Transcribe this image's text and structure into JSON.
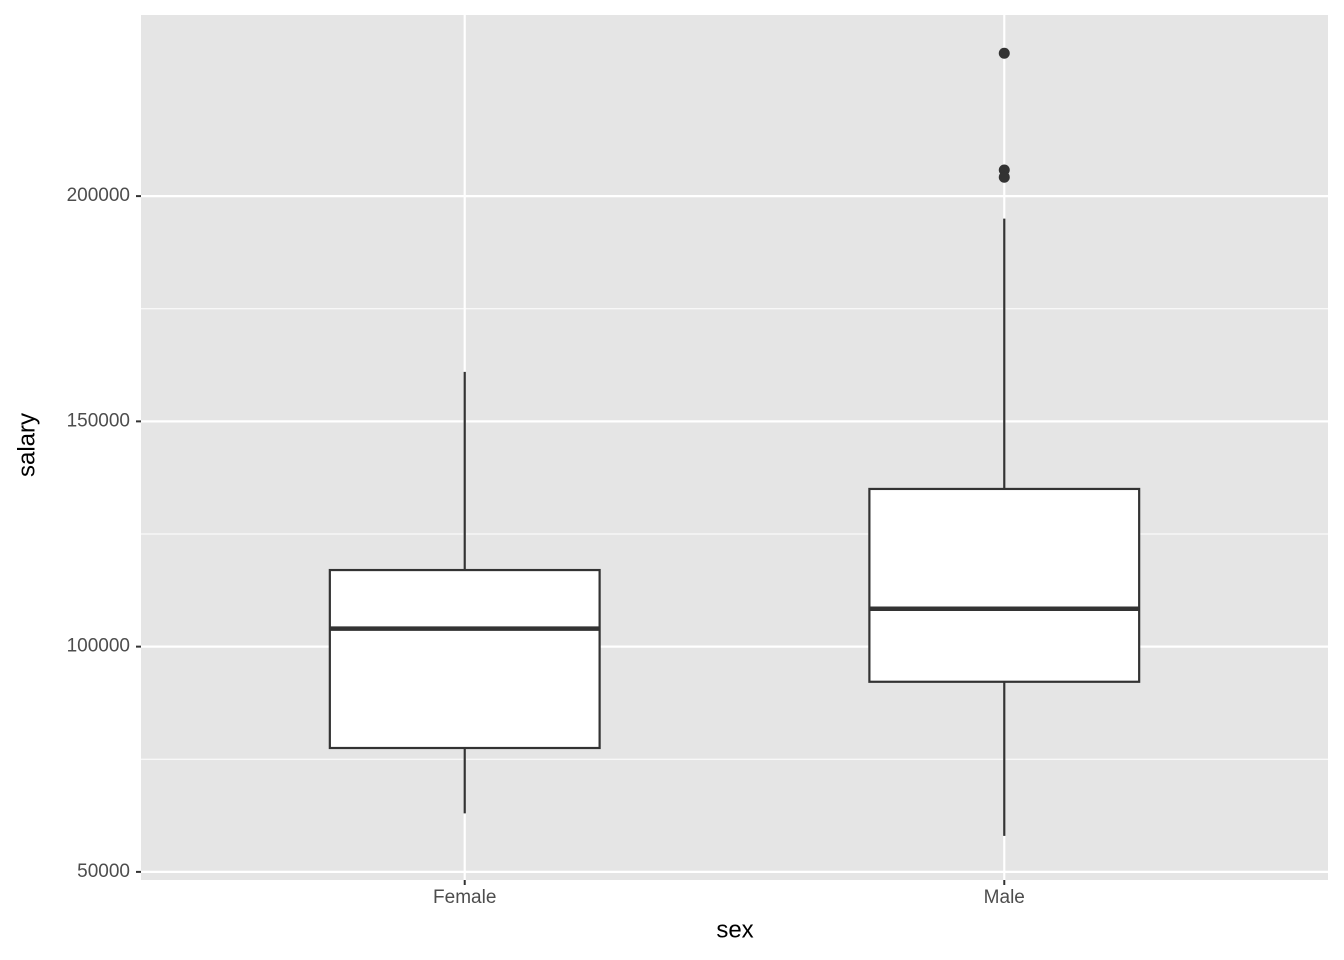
{
  "chart_data": {
    "type": "boxplot",
    "x_label": "sex",
    "y_label": "salary",
    "categories": [
      "Female",
      "Male"
    ],
    "boxes": [
      {
        "whisker_low": 63000,
        "q1": 77500,
        "median": 104000,
        "q3": 117000,
        "whisker_high": 161000,
        "outliers": []
      },
      {
        "whisker_low": 58000,
        "q1": 92200,
        "median": 108400,
        "q3": 135000,
        "whisker_high": 195000,
        "outliers": [
          231700,
          205800,
          204200
        ]
      }
    ],
    "box_fill": "#ffffff",
    "box_stroke": "#333333",
    "panel_color": "#e5e5e5",
    "ylim": [
      48200,
      240200
    ],
    "yticks": [
      50000,
      100000,
      150000,
      200000
    ],
    "grid": true,
    "minor_grid": true
  }
}
